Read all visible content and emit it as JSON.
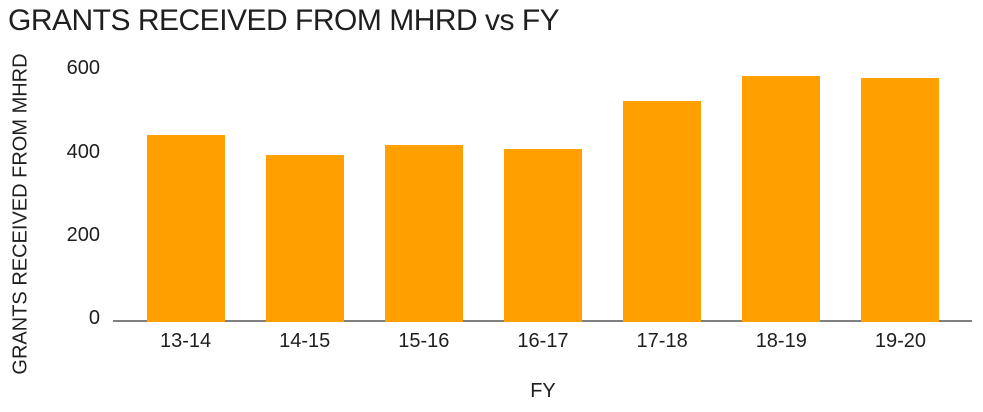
{
  "title": "GRANTS RECEIVED FROM MHRD vs FY",
  "colors": {
    "bar": "#FFA000",
    "axis_line": "#808080",
    "text": "#1f1f1f",
    "background": "#ffffff"
  },
  "chart_data": {
    "type": "bar",
    "title": "GRANTS RECEIVED FROM MHRD vs FY",
    "xlabel": "FY",
    "ylabel": "GRANTS RECEIVED FROM MHRD",
    "categories": [
      "13-14",
      "14-15",
      "15-16",
      "16-17",
      "17-18",
      "18-19",
      "19-20"
    ],
    "values": [
      440,
      390,
      415,
      405,
      520,
      580,
      575
    ],
    "ylim": [
      0,
      600
    ],
    "yticks": [
      0,
      200,
      400,
      600
    ],
    "grid": false,
    "legend": false,
    "bar_color": "#FFA000"
  }
}
